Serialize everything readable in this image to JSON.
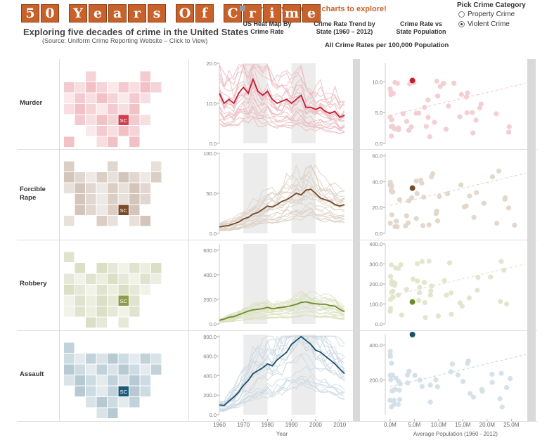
{
  "header": {
    "title_letters": [
      "5",
      "0",
      "",
      "Y",
      "e",
      "a",
      "r",
      "s",
      "",
      "O",
      "f",
      "",
      "C",
      "r",
      "i",
      "m",
      "e"
    ],
    "subtitle": "Exploring five decades of crime in the United States",
    "source": "(Source: Uniform Crime Reporting Website – Click to View)",
    "hover_hint": "Hover anywhere on charts to explore!",
    "sections": [
      "US Heat Map By Crime Rate",
      "Crime Rate Trend by State (1960 – 2012)",
      "Crime Rate vs State Population"
    ],
    "rates_note": "All Crime Rates per 100,000 Population"
  },
  "category_picker": {
    "title": "Pick Crime Category",
    "options": [
      "Property Crime",
      "Violent Crime"
    ],
    "selected": "Violent Crime"
  },
  "highlight_state": "SC",
  "chart_data": [
    {
      "type": "heatmap",
      "name": "Murder",
      "color": "#d23c4e",
      "cells": [
        [
          2,
          1
        ],
        [
          7,
          1
        ],
        [
          0,
          2
        ],
        [
          1,
          2
        ],
        [
          2,
          2
        ],
        [
          3,
          2
        ],
        [
          4,
          2
        ],
        [
          5,
          2
        ],
        [
          6,
          2
        ],
        [
          7,
          2
        ],
        [
          8,
          2
        ],
        [
          0,
          3
        ],
        [
          1,
          3
        ],
        [
          2,
          3
        ],
        [
          3,
          3
        ],
        [
          4,
          3
        ],
        [
          5,
          3
        ],
        [
          6,
          3
        ],
        [
          7,
          3
        ],
        [
          0,
          4
        ],
        [
          1,
          4
        ],
        [
          2,
          4
        ],
        [
          3,
          4
        ],
        [
          4,
          4
        ],
        [
          5,
          4
        ],
        [
          6,
          4
        ],
        [
          1,
          5
        ],
        [
          2,
          5
        ],
        [
          3,
          5
        ],
        [
          4,
          5
        ],
        [
          5,
          5
        ],
        [
          6,
          5
        ],
        [
          7,
          5
        ],
        [
          2,
          6
        ],
        [
          3,
          6
        ],
        [
          4,
          6
        ],
        [
          5,
          6
        ],
        [
          6,
          6
        ],
        [
          0,
          7
        ],
        [
          3,
          7
        ],
        [
          4,
          7
        ],
        [
          6,
          7
        ]
      ],
      "highlight_cell": [
        5,
        5
      ]
    },
    {
      "type": "line",
      "name": "Murder",
      "color": "#c31f33",
      "light": "#ebbcc3",
      "xlim": [
        1960,
        2012
      ],
      "ylim": [
        0,
        20
      ],
      "yticks": [
        0,
        10,
        20
      ],
      "tick_labels": [
        "0.0",
        "10.0",
        "20.0"
      ],
      "highlight": {
        "x": [
          1960,
          1962,
          1964,
          1966,
          1968,
          1970,
          1972,
          1974,
          1976,
          1978,
          1980,
          1982,
          1984,
          1986,
          1988,
          1990,
          1992,
          1994,
          1996,
          1998,
          2000,
          2002,
          2004,
          2006,
          2008,
          2010,
          2012
        ],
        "y": [
          12.5,
          10,
          11,
          10,
          12.5,
          14,
          12.5,
          16,
          13,
          12,
          13,
          11,
          10,
          10.5,
          11,
          10,
          11,
          12,
          9,
          9,
          8.5,
          9,
          8,
          7.5,
          8,
          6.5,
          7
        ]
      }
    },
    {
      "type": "scatter",
      "name": "Murder",
      "color": "#c31f33",
      "light": "#f2ccd1",
      "ylim": [
        0,
        13
      ],
      "yticks": [
        0,
        5,
        10
      ],
      "tick_labels": [
        "0.0",
        "5.0",
        "10.0"
      ],
      "highlight_point": [
        4.6,
        10.2
      ]
    },
    {
      "type": "heatmap",
      "name": "Forcible Rape",
      "color": "#7a4a28",
      "cells": [
        [
          0,
          1
        ],
        [
          4,
          1
        ],
        [
          8,
          1
        ],
        [
          0,
          2
        ],
        [
          1,
          2
        ],
        [
          2,
          2
        ],
        [
          3,
          2
        ],
        [
          4,
          2
        ],
        [
          5,
          2
        ],
        [
          6,
          2
        ],
        [
          7,
          2
        ],
        [
          8,
          2
        ],
        [
          0,
          3
        ],
        [
          1,
          3
        ],
        [
          2,
          3
        ],
        [
          3,
          3
        ],
        [
          4,
          3
        ],
        [
          5,
          3
        ],
        [
          6,
          3
        ],
        [
          7,
          3
        ],
        [
          1,
          4
        ],
        [
          2,
          4
        ],
        [
          3,
          4
        ],
        [
          4,
          4
        ],
        [
          5,
          4
        ],
        [
          6,
          4
        ],
        [
          7,
          4
        ],
        [
          1,
          5
        ],
        [
          2,
          5
        ],
        [
          3,
          5
        ],
        [
          4,
          5
        ],
        [
          5,
          5
        ],
        [
          6,
          5
        ],
        [
          0,
          6
        ],
        [
          3,
          6
        ],
        [
          4,
          6
        ],
        [
          6,
          6
        ],
        [
          7,
          6
        ]
      ],
      "highlight_cell": [
        5,
        5
      ]
    },
    {
      "type": "line",
      "name": "Forcible Rape",
      "color": "#7a4a28",
      "light": "#ddd2c6",
      "xlim": [
        1960,
        2012
      ],
      "ylim": [
        0,
        100
      ],
      "yticks": [
        0,
        50,
        100
      ],
      "tick_labels": [
        "0.0",
        "50.0",
        "100.0"
      ],
      "highlight": {
        "x": [
          1960,
          1962,
          1964,
          1966,
          1968,
          1970,
          1972,
          1974,
          1976,
          1978,
          1980,
          1982,
          1984,
          1986,
          1988,
          1990,
          1992,
          1994,
          1996,
          1998,
          2000,
          2002,
          2004,
          2006,
          2008,
          2010,
          2012
        ],
        "y": [
          8,
          9,
          10,
          12,
          14,
          18,
          20,
          24,
          26,
          30,
          34,
          33,
          36,
          40,
          42,
          46,
          50,
          48,
          54,
          55,
          50,
          44,
          42,
          40,
          36,
          34,
          36
        ]
      }
    },
    {
      "type": "scatter",
      "name": "Forcible Rape",
      "color": "#7a4a28",
      "light": "#e3d6c9",
      "ylim": [
        0,
        62
      ],
      "yticks": [
        0,
        20,
        40,
        60
      ],
      "tick_labels": [
        "0.0",
        "20.0",
        "40.0",
        "60.0"
      ],
      "highlight_point": [
        4.6,
        35
      ]
    },
    {
      "type": "heatmap",
      "name": "Robbery",
      "color": "#8e9c4a",
      "cells": [
        [
          0,
          1
        ],
        [
          1,
          2
        ],
        [
          3,
          2
        ],
        [
          4,
          2
        ],
        [
          5,
          2
        ],
        [
          6,
          2
        ],
        [
          7,
          2
        ],
        [
          8,
          2
        ],
        [
          0,
          3
        ],
        [
          1,
          3
        ],
        [
          2,
          3
        ],
        [
          3,
          3
        ],
        [
          4,
          3
        ],
        [
          5,
          3
        ],
        [
          6,
          3
        ],
        [
          7,
          3
        ],
        [
          8,
          3
        ],
        [
          0,
          4
        ],
        [
          1,
          4
        ],
        [
          2,
          4
        ],
        [
          3,
          4
        ],
        [
          4,
          4
        ],
        [
          5,
          4
        ],
        [
          6,
          4
        ],
        [
          7,
          4
        ],
        [
          0,
          5
        ],
        [
          1,
          5
        ],
        [
          2,
          5
        ],
        [
          3,
          5
        ],
        [
          4,
          5
        ],
        [
          5,
          5
        ],
        [
          6,
          5
        ],
        [
          0,
          6
        ],
        [
          1,
          6
        ],
        [
          2,
          6
        ],
        [
          3,
          6
        ],
        [
          4,
          6
        ],
        [
          5,
          6
        ],
        [
          6,
          6
        ],
        [
          2,
          7
        ],
        [
          3,
          7
        ],
        [
          5,
          7
        ]
      ],
      "highlight_cell": [
        5,
        5
      ]
    },
    {
      "type": "line",
      "name": "Robbery",
      "color": "#6e8a2e",
      "light": "#dde2c2",
      "xlim": [
        1960,
        2012
      ],
      "ylim": [
        0,
        650
      ],
      "yticks": [
        0,
        200,
        400,
        600
      ],
      "tick_labels": [
        "0.0",
        "200.0",
        "400.0",
        "600.0"
      ],
      "highlight": {
        "x": [
          1960,
          1962,
          1964,
          1966,
          1968,
          1970,
          1972,
          1974,
          1976,
          1978,
          1980,
          1982,
          1984,
          1986,
          1988,
          1990,
          1992,
          1994,
          1996,
          1998,
          2000,
          2002,
          2004,
          2006,
          2008,
          2010,
          2012
        ],
        "y": [
          30,
          40,
          55,
          60,
          75,
          90,
          105,
          115,
          120,
          125,
          135,
          125,
          130,
          135,
          140,
          150,
          160,
          175,
          180,
          170,
          165,
          160,
          160,
          150,
          145,
          120,
          100
        ]
      }
    },
    {
      "type": "scatter",
      "name": "Robbery",
      "color": "#6e8a2e",
      "light": "#e0e5ca",
      "ylim": [
        0,
        400
      ],
      "yticks": [
        0,
        100,
        200,
        300,
        400
      ],
      "tick_labels": [
        "0.0",
        "100.0",
        "200.0",
        "300.0",
        "400.0"
      ],
      "highlight_point": [
        4.6,
        110
      ]
    },
    {
      "type": "heatmap",
      "name": "Assault",
      "color": "#1d5a7a",
      "cells": [
        [
          0,
          1
        ],
        [
          0,
          2
        ],
        [
          1,
          2
        ],
        [
          2,
          2
        ],
        [
          3,
          2
        ],
        [
          4,
          2
        ],
        [
          5,
          2
        ],
        [
          6,
          2
        ],
        [
          7,
          2
        ],
        [
          8,
          2
        ],
        [
          0,
          3
        ],
        [
          1,
          3
        ],
        [
          2,
          3
        ],
        [
          3,
          3
        ],
        [
          4,
          3
        ],
        [
          5,
          3
        ],
        [
          6,
          3
        ],
        [
          7,
          3
        ],
        [
          8,
          3
        ],
        [
          0,
          4
        ],
        [
          1,
          4
        ],
        [
          2,
          4
        ],
        [
          3,
          4
        ],
        [
          4,
          4
        ],
        [
          5,
          4
        ],
        [
          6,
          4
        ],
        [
          7,
          4
        ],
        [
          1,
          5
        ],
        [
          2,
          5
        ],
        [
          3,
          5
        ],
        [
          4,
          5
        ],
        [
          5,
          5
        ],
        [
          6,
          5
        ],
        [
          7,
          5
        ],
        [
          2,
          6
        ],
        [
          3,
          6
        ],
        [
          4,
          6
        ],
        [
          5,
          6
        ],
        [
          6,
          6
        ],
        [
          3,
          7
        ],
        [
          4,
          7
        ]
      ],
      "highlight_cell": [
        5,
        5
      ]
    },
    {
      "type": "line",
      "name": "Assault",
      "color": "#1d4e6e",
      "light": "#cdd9e2",
      "xlim": [
        1960,
        2012
      ],
      "ylim": [
        0,
        820
      ],
      "yticks": [
        0,
        200,
        400,
        600,
        800
      ],
      "tick_labels": [
        "0.0",
        "200.0",
        "400.0",
        "600.0",
        "800.0"
      ],
      "highlight": {
        "x": [
          1960,
          1962,
          1964,
          1966,
          1968,
          1970,
          1972,
          1974,
          1976,
          1978,
          1980,
          1982,
          1984,
          1986,
          1988,
          1990,
          1992,
          1994,
          1996,
          1998,
          2000,
          2002,
          2004,
          2006,
          2008,
          2010,
          2012
        ],
        "y": [
          100,
          95,
          140,
          180,
          230,
          300,
          350,
          420,
          450,
          480,
          520,
          500,
          560,
          600,
          640,
          720,
          760,
          800,
          760,
          720,
          660,
          640,
          600,
          560,
          520,
          470,
          420
        ]
      }
    },
    {
      "type": "scatter",
      "name": "Assault",
      "color": "#1d4e6e",
      "light": "#d3dfe8",
      "ylim": [
        0,
        460
      ],
      "yticks": [
        200,
        400
      ],
      "tick_labels": [
        "200.0",
        "400.0"
      ],
      "highlight_point": [
        4.6,
        460
      ]
    }
  ],
  "axes": {
    "year_ticks": [
      "1960",
      "1970",
      "1980",
      "1990",
      "2000",
      "2010"
    ],
    "year_label": "Year",
    "pop_ticks": [
      "0.0M",
      "5.0M",
      "10.0M",
      "15.0M",
      "20.0M",
      "25.0M"
    ],
    "pop_label": "Average Population (1960 - 2012)"
  },
  "rows": [
    "Murder",
    "Forcible Rape",
    "Robbery",
    "Assault"
  ]
}
